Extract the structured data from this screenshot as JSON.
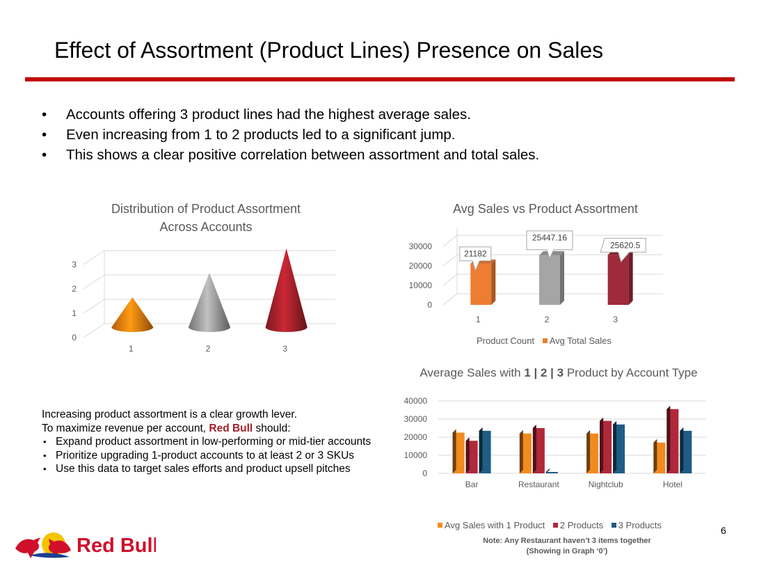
{
  "slide": {
    "title": "Effect of Assortment (Product Lines) Presence on Sales",
    "bullets": [
      "Accounts offering 3 product lines had the highest average sales.",
      "Even increasing from 1 to 2 products led to a significant jump.",
      "This shows a clear positive correlation between assortment and total sales."
    ],
    "callout": {
      "line1": "Increasing product assortment is a clear growth lever.",
      "line2_prefix": "To maximize revenue per account, ",
      "line2_brand": "Red Bull",
      "line2_suffix": " should:",
      "items": [
        "Expand product assortment in low-performing or mid-tier accounts",
        "Prioritize upgrading 1-product accounts to at least 2 or 3 SKUs",
        "Use this data to target sales efforts and product upsell pitches"
      ]
    },
    "note_line1": "Note: Any Restaurant haven’t 3 items together",
    "note_line2": "(Showing in Graph ‘0’)",
    "page_number": "6",
    "logo_text": "Red Bull",
    "accent_color": "#c00000",
    "brand_color": "#a3202a"
  },
  "chart_data": [
    {
      "type": "bar",
      "style": "3d-cone",
      "title_line1": "Distribution of Product Assortment",
      "title_line2": "Across Accounts",
      "categories": [
        "1",
        "2",
        "3"
      ],
      "values": [
        1,
        2,
        3
      ],
      "ylim": [
        0,
        3
      ],
      "yticks": [
        "0",
        "1",
        "2",
        "3"
      ],
      "colors": [
        "#f07c10",
        "#9a9a9a",
        "#a3202a"
      ],
      "grid": true
    },
    {
      "type": "bar",
      "style": "3d-column",
      "title": "Avg Sales vs Product Assortment",
      "categories": [
        "1",
        "2",
        "3"
      ],
      "series": [
        {
          "name": "Product Count",
          "values": [
            1,
            2,
            3
          ]
        },
        {
          "name": "Avg Total Sales",
          "values": [
            21182,
            25447.16,
            25620.5
          ]
        }
      ],
      "data_labels": [
        "21182",
        "25447.16",
        "25620.5"
      ],
      "bar_colors": [
        "#ed7d31",
        "#a5a5a5",
        "#9e2a3a"
      ],
      "ylim": [
        0,
        30000
      ],
      "yticks": [
        "0",
        "10000",
        "20000",
        "30000"
      ],
      "legend_position": "bottom",
      "legend_colors": [
        "#ffffff",
        "#ed7d31"
      ],
      "grid": true
    },
    {
      "type": "bar",
      "style": "3d-clustered-column",
      "title_prefix": "Average Sales with ",
      "title_bold": "1 | 2 | 3",
      "title_suffix": " Product by Account Type",
      "categories": [
        "Bar",
        "Restaurant",
        "Nightclub",
        "Hotel"
      ],
      "series": [
        {
          "name": "Avg Sales with 1 Product",
          "color": "#f28b1e",
          "values": [
            22500,
            22000,
            22000,
            17000
          ]
        },
        {
          "name": "2 Products",
          "color": "#b0283a",
          "values": [
            18000,
            25000,
            29000,
            35500
          ]
        },
        {
          "name": "3 Products",
          "color": "#1f5d86",
          "values": [
            23500,
            0,
            27000,
            23500
          ]
        }
      ],
      "ylim": [
        0,
        40000
      ],
      "yticks": [
        "0",
        "10000",
        "20000",
        "30000",
        "40000"
      ],
      "legend_position": "bottom",
      "grid": true
    }
  ]
}
